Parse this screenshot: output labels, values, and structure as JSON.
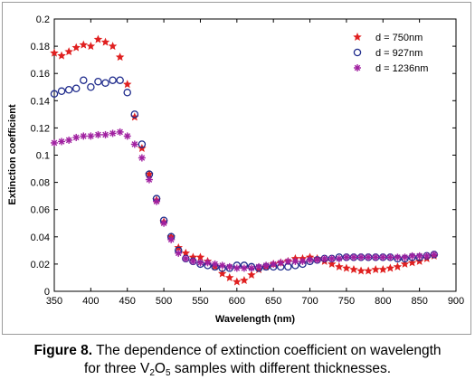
{
  "chart_data": {
    "type": "scatter",
    "xlabel": "Wavelength (nm)",
    "ylabel": "Extinction coefficient",
    "xlim": [
      350,
      900
    ],
    "ylim": [
      0,
      0.2
    ],
    "xticks": [
      "350",
      "400",
      "450",
      "500",
      "550",
      "600",
      "650",
      "700",
      "750",
      "800",
      "850",
      "900"
    ],
    "yticks": [
      "0",
      "0.02",
      "0.04",
      "0.06",
      "0.08",
      "0.1",
      "0.12",
      "0.14",
      "0.16",
      "0.18",
      "0.2"
    ],
    "legend_position": "top-right",
    "series": [
      {
        "name": "d = 750nm",
        "marker": "star-filled",
        "color": "#e02020",
        "x": [
          350,
          360,
          370,
          380,
          390,
          400,
          410,
          420,
          430,
          440,
          450,
          460,
          470,
          480,
          490,
          500,
          510,
          520,
          530,
          540,
          550,
          560,
          570,
          580,
          590,
          600,
          610,
          620,
          630,
          640,
          650,
          660,
          670,
          680,
          690,
          700,
          710,
          720,
          730,
          740,
          750,
          760,
          770,
          780,
          790,
          800,
          810,
          820,
          830,
          840,
          850,
          860,
          870
        ],
        "y": [
          0.175,
          0.173,
          0.176,
          0.179,
          0.181,
          0.18,
          0.185,
          0.183,
          0.18,
          0.172,
          0.152,
          0.128,
          0.105,
          0.086,
          0.067,
          0.051,
          0.04,
          0.032,
          0.028,
          0.025,
          0.025,
          0.022,
          0.018,
          0.013,
          0.01,
          0.007,
          0.008,
          0.012,
          0.016,
          0.018,
          0.02,
          0.021,
          0.022,
          0.024,
          0.024,
          0.025,
          0.024,
          0.022,
          0.02,
          0.018,
          0.017,
          0.016,
          0.015,
          0.015,
          0.016,
          0.016,
          0.017,
          0.018,
          0.02,
          0.021,
          0.022,
          0.024,
          0.026
        ]
      },
      {
        "name": "d = 927nm",
        "marker": "circle-open",
        "color": "#1f2b8c",
        "x": [
          350,
          360,
          370,
          380,
          390,
          400,
          410,
          420,
          430,
          440,
          450,
          460,
          470,
          480,
          490,
          500,
          510,
          520,
          530,
          540,
          550,
          560,
          570,
          580,
          590,
          600,
          610,
          620,
          630,
          640,
          650,
          660,
          670,
          680,
          690,
          700,
          710,
          720,
          730,
          740,
          750,
          760,
          770,
          780,
          790,
          800,
          810,
          820,
          830,
          840,
          850,
          860,
          870
        ],
        "y": [
          0.145,
          0.147,
          0.148,
          0.149,
          0.155,
          0.15,
          0.154,
          0.153,
          0.155,
          0.155,
          0.146,
          0.13,
          0.108,
          0.086,
          0.068,
          0.052,
          0.04,
          0.03,
          0.024,
          0.022,
          0.02,
          0.019,
          0.018,
          0.017,
          0.017,
          0.019,
          0.019,
          0.018,
          0.017,
          0.018,
          0.018,
          0.018,
          0.018,
          0.019,
          0.02,
          0.022,
          0.023,
          0.024,
          0.024,
          0.025,
          0.025,
          0.025,
          0.025,
          0.025,
          0.025,
          0.025,
          0.025,
          0.024,
          0.024,
          0.025,
          0.025,
          0.026,
          0.027
        ]
      },
      {
        "name": "d = 1236nm",
        "marker": "asterisk",
        "color": "#a020a0",
        "x": [
          350,
          360,
          370,
          380,
          390,
          400,
          410,
          420,
          430,
          440,
          450,
          460,
          470,
          480,
          490,
          500,
          510,
          520,
          530,
          540,
          550,
          560,
          570,
          580,
          590,
          600,
          610,
          620,
          630,
          640,
          650,
          660,
          670,
          680,
          690,
          700,
          710,
          720,
          730,
          740,
          750,
          760,
          770,
          780,
          790,
          800,
          810,
          820,
          830,
          840,
          850,
          860,
          870
        ],
        "y": [
          0.109,
          0.11,
          0.111,
          0.113,
          0.114,
          0.114,
          0.115,
          0.115,
          0.116,
          0.117,
          0.114,
          0.108,
          0.098,
          0.082,
          0.066,
          0.05,
          0.038,
          0.028,
          0.024,
          0.022,
          0.021,
          0.021,
          0.02,
          0.019,
          0.018,
          0.017,
          0.017,
          0.017,
          0.018,
          0.019,
          0.02,
          0.021,
          0.022,
          0.022,
          0.022,
          0.023,
          0.023,
          0.024,
          0.024,
          0.024,
          0.025,
          0.025,
          0.025,
          0.025,
          0.025,
          0.025,
          0.025,
          0.025,
          0.025,
          0.026,
          0.026,
          0.026,
          0.027
        ]
      }
    ]
  },
  "caption": {
    "figure_label": "Figure 8.",
    "line1_text": " The dependence of extinction coefficient on wavelength",
    "line2_prefix": "for three V",
    "sub1": "2",
    "mid": "O",
    "sub2": "5",
    "line2_suffix": " samples with different thicknesses."
  }
}
